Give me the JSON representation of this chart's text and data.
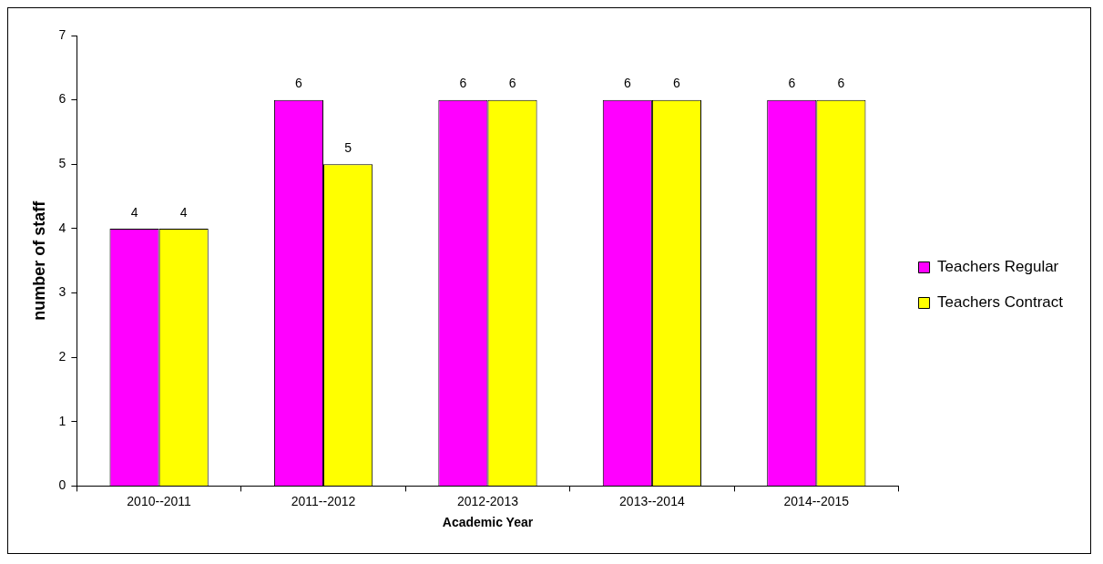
{
  "chart_data": {
    "type": "bar",
    "xlabel": "Academic Year",
    "ylabel": "number of staff",
    "categories": [
      "2010--2011",
      "2011--2012",
      "2012-2013",
      "2013--2014",
      "2014--2015"
    ],
    "series": [
      {
        "name": "Teachers Regular",
        "color": "#ff00ff",
        "values": [
          4,
          6,
          6,
          6,
          6
        ]
      },
      {
        "name": "Teachers Contract",
        "color": "#ffff00",
        "values": [
          4,
          5,
          6,
          6,
          6
        ]
      }
    ],
    "ylim": [
      0,
      7
    ],
    "yticks": [
      0,
      1,
      2,
      3,
      4,
      5,
      6,
      7
    ],
    "grid": false,
    "legend": "right",
    "data_labels": true
  }
}
